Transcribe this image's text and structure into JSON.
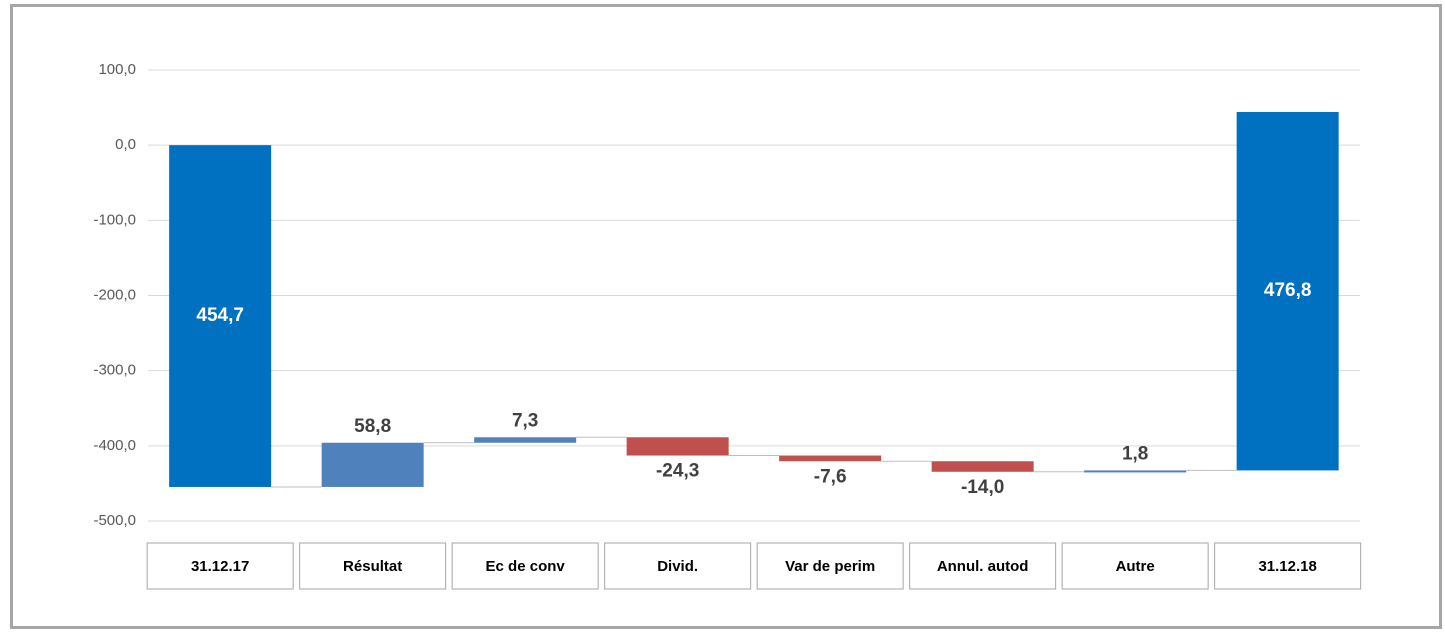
{
  "chart_data": {
    "type": "waterfall",
    "categories": [
      "31.12.17",
      "Résultat",
      "Ec de conv",
      "Divid.",
      "Var de perim",
      "Annul. autod",
      "Autre",
      "31.12.18"
    ],
    "values": [
      454.7,
      58.8,
      7.3,
      -24.3,
      -7.6,
      -14.0,
      1.8,
      476.8
    ],
    "value_labels": [
      "454,7",
      "58,8",
      "7,3",
      "-24,3",
      "-7,6",
      "-14,0",
      "1,8",
      "476,8"
    ],
    "colors": [
      "#0070c0",
      "#4f81bd",
      "#4f81bd",
      "#c0504d",
      "#c0504d",
      "#c0504d",
      "#4f81bd",
      "#0070c0"
    ],
    "ylim": [
      -500,
      100
    ],
    "yticks": [
      {
        "value": 100,
        "label": "100,0"
      },
      {
        "value": 0,
        "label": "0,0"
      },
      {
        "value": -100,
        "label": "-100,0"
      },
      {
        "value": -200,
        "label": "-200,0"
      },
      {
        "value": -300,
        "label": "-300,0"
      },
      {
        "value": -400,
        "label": "-400,0"
      },
      {
        "value": -500,
        "label": "-500,0"
      }
    ],
    "grid": true
  }
}
